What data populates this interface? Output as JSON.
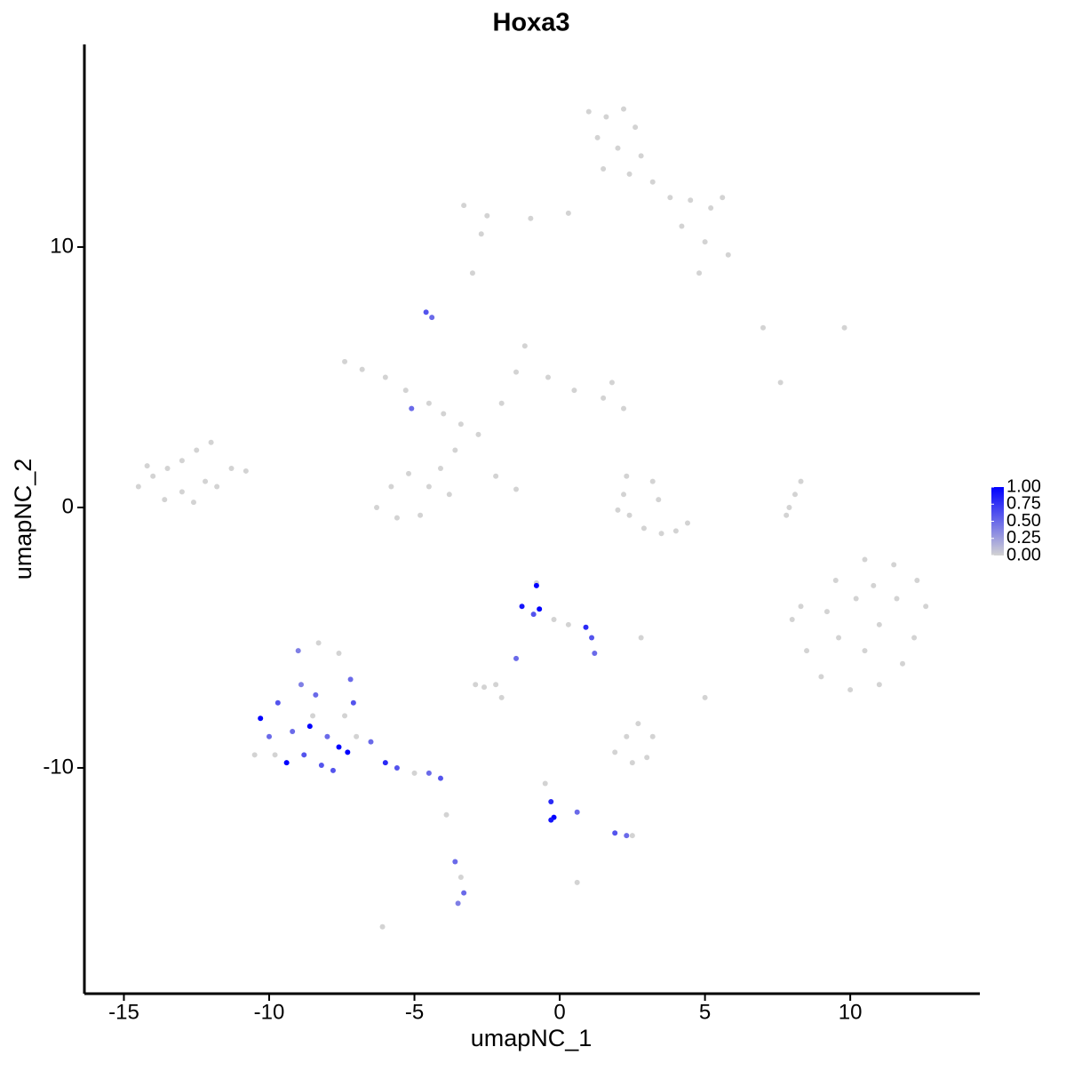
{
  "chart_data": {
    "type": "scatter",
    "title": "Hoxa3",
    "x_label": "umapNC_1",
    "y_label": "umapNC_2",
    "x": [
      1.0,
      1.6,
      2.2,
      2.6,
      1.3,
      2.0,
      2.8,
      1.5,
      2.4,
      3.2,
      3.8,
      4.5,
      5.2,
      5.6,
      4.2,
      5.0,
      5.8,
      4.8,
      -3.3,
      -2.5,
      -1.0,
      0.3,
      -3.0,
      -2.7,
      -4.6,
      -4.4,
      -7.4,
      -6.8,
      -6.0,
      -5.3,
      -4.5,
      -4.0,
      -3.4,
      -2.8,
      -3.6,
      -4.1,
      -4.5,
      -5.2,
      -5.8,
      -6.3,
      -5.6,
      -4.8,
      -3.8,
      -2.2,
      -1.5,
      -2.0,
      -1.5,
      -1.2,
      -0.4,
      0.5,
      1.5,
      2.2,
      1.8,
      -5.1,
      -14.5,
      -14.0,
      -13.5,
      -13.0,
      -12.5,
      -12.0,
      -11.3,
      -10.8,
      -12.2,
      -13.0,
      -13.6,
      -12.6,
      -11.8,
      -14.2,
      2.3,
      2.2,
      2.4,
      2.9,
      3.5,
      4.0,
      4.4,
      3.4,
      3.2,
      2.0,
      8.3,
      8.1,
      7.9,
      7.8,
      9.5,
      10.5,
      11.5,
      12.3,
      12.6,
      12.2,
      11.8,
      11.0,
      10.0,
      9.0,
      8.5,
      8.0,
      9.2,
      10.2,
      11.0,
      10.5,
      9.6,
      11.6,
      8.3,
      10.8,
      -9.0,
      -8.3,
      -7.6,
      -7.2,
      -7.1,
      -10.3,
      -10.0,
      -9.7,
      -9.4,
      -9.2,
      -8.9,
      -8.8,
      -8.6,
      -8.4,
      -8.2,
      -8.0,
      -7.8,
      -7.6,
      -7.4,
      -7.3,
      -10.5,
      -9.8,
      -7.0,
      -6.5,
      -6.0,
      -5.6,
      -5.0,
      -4.5,
      -4.1,
      -8.5,
      -0.8,
      -0.8,
      -1.3,
      -0.7,
      -0.9,
      -0.2,
      0.3,
      0.9,
      1.1,
      1.2,
      -1.5,
      -2.9,
      -2.6,
      -2.2,
      -2.0,
      2.7,
      2.3,
      1.9,
      2.5,
      3.0,
      3.2,
      -0.5,
      -0.3,
      -0.2,
      -0.3,
      0.6,
      1.9,
      2.3,
      2.5,
      -3.6,
      -3.4,
      -3.3,
      -3.5,
      -6.1,
      7.0,
      9.8,
      7.6,
      5.0,
      2.8,
      -3.9,
      0.6
    ],
    "y": [
      15.2,
      15.0,
      15.3,
      14.6,
      14.2,
      13.8,
      13.5,
      13.0,
      12.8,
      12.5,
      11.9,
      11.8,
      11.5,
      11.9,
      10.8,
      10.2,
      9.7,
      9.0,
      11.6,
      11.2,
      11.1,
      11.3,
      9.0,
      10.5,
      7.5,
      7.3,
      5.6,
      5.3,
      5.0,
      4.5,
      4.0,
      3.6,
      3.2,
      2.8,
      2.2,
      1.5,
      0.8,
      1.3,
      0.8,
      0.0,
      -0.4,
      -0.3,
      0.5,
      1.2,
      0.7,
      4.0,
      5.2,
      6.2,
      5.0,
      4.5,
      4.2,
      3.8,
      4.8,
      3.8,
      0.8,
      1.2,
      1.5,
      1.8,
      2.2,
      2.5,
      1.5,
      1.4,
      1.0,
      0.6,
      0.3,
      0.2,
      0.8,
      1.6,
      1.2,
      0.5,
      -0.3,
      -0.8,
      -1.0,
      -0.9,
      -0.6,
      0.3,
      1.0,
      -0.1,
      1.0,
      0.5,
      0.0,
      -0.3,
      -2.8,
      -2.0,
      -2.2,
      -2.8,
      -3.8,
      -5.0,
      -6.0,
      -6.8,
      -7.0,
      -6.5,
      -5.5,
      -4.3,
      -4.0,
      -3.5,
      -4.5,
      -5.5,
      -5.0,
      -3.5,
      -3.8,
      -3.0,
      -5.5,
      -5.2,
      -5.6,
      -6.6,
      -7.5,
      -8.1,
      -8.8,
      -7.5,
      -9.8,
      -8.6,
      -6.8,
      -9.5,
      -8.4,
      -7.2,
      -9.9,
      -8.8,
      -10.1,
      -9.2,
      -8.0,
      -9.4,
      -9.5,
      -9.5,
      -8.8,
      -9.0,
      -9.8,
      -10.0,
      -10.2,
      -10.2,
      -10.4,
      -8.0,
      -2.9,
      -3.0,
      -3.8,
      -3.9,
      -4.1,
      -4.3,
      -4.5,
      -4.6,
      -5.0,
      -5.6,
      -5.8,
      -6.8,
      -6.9,
      -6.8,
      -7.3,
      -8.3,
      -8.8,
      -9.4,
      -9.8,
      -9.6,
      -8.8,
      -10.6,
      -11.3,
      -11.9,
      -12.0,
      -11.7,
      -12.5,
      -12.6,
      -12.6,
      -13.6,
      -14.2,
      -14.8,
      -15.2,
      -16.1,
      6.9,
      6.9,
      4.8,
      -7.3,
      -5.0,
      -11.8,
      -14.4
    ],
    "values": [
      0,
      0,
      0,
      0,
      0,
      0,
      0,
      0,
      0,
      0,
      0,
      0,
      0,
      0,
      0,
      0,
      0,
      0,
      0,
      0,
      0,
      0,
      0,
      0,
      0.6,
      0.5,
      0,
      0,
      0,
      0,
      0,
      0,
      0,
      0,
      0,
      0,
      0,
      0,
      0,
      0,
      0,
      0,
      0,
      0,
      0,
      0,
      0,
      0,
      0,
      0,
      0,
      0,
      0,
      0.5,
      0,
      0,
      0,
      0,
      0,
      0,
      0,
      0,
      0,
      0,
      0,
      0,
      0,
      0,
      0,
      0,
      0,
      0,
      0,
      0,
      0,
      0,
      0,
      0,
      0,
      0,
      0,
      0,
      0,
      0,
      0,
      0,
      0,
      0,
      0,
      0,
      0,
      0,
      0,
      0,
      0,
      0,
      0,
      0,
      0,
      0,
      0,
      0,
      0.4,
      0,
      0,
      0.5,
      0.6,
      1.0,
      0.5,
      0.6,
      1.0,
      0.5,
      0.4,
      0.6,
      1.0,
      0.5,
      0.6,
      0.5,
      0.6,
      1.0,
      0,
      1.0,
      0,
      0,
      0,
      0.5,
      0.8,
      0.6,
      0,
      0.5,
      0.6,
      0,
      0,
      1.0,
      0.9,
      1.0,
      0.6,
      0,
      0,
      0.8,
      0.6,
      0.5,
      0.5,
      0,
      0,
      0,
      0,
      0,
      0,
      0,
      0,
      0,
      0,
      0,
      0.8,
      1.0,
      0.9,
      0.5,
      0.6,
      0.5,
      0,
      0.5,
      0,
      0.5,
      0.4,
      0,
      0,
      0,
      0,
      0,
      0,
      0,
      0
    ],
    "colors": [
      "#d3d3d3",
      "#0000ff"
    ],
    "clim": [
      0,
      1
    ],
    "legend_ticks": [
      {
        "value": 0,
        "label": "0.00"
      },
      {
        "value": 0.25,
        "label": "0.25"
      },
      {
        "value": 0.5,
        "label": "0.50"
      },
      {
        "value": 0.75,
        "label": "0.75"
      },
      {
        "value": 1,
        "label": "1.00"
      }
    ],
    "xlim": [
      -16.36,
      14.46
    ],
    "ylim": [
      -18.67,
      17.78
    ],
    "xticks": [
      -15,
      -10,
      -5,
      0,
      5,
      10
    ],
    "yticks": [
      -10,
      0,
      10
    ]
  }
}
